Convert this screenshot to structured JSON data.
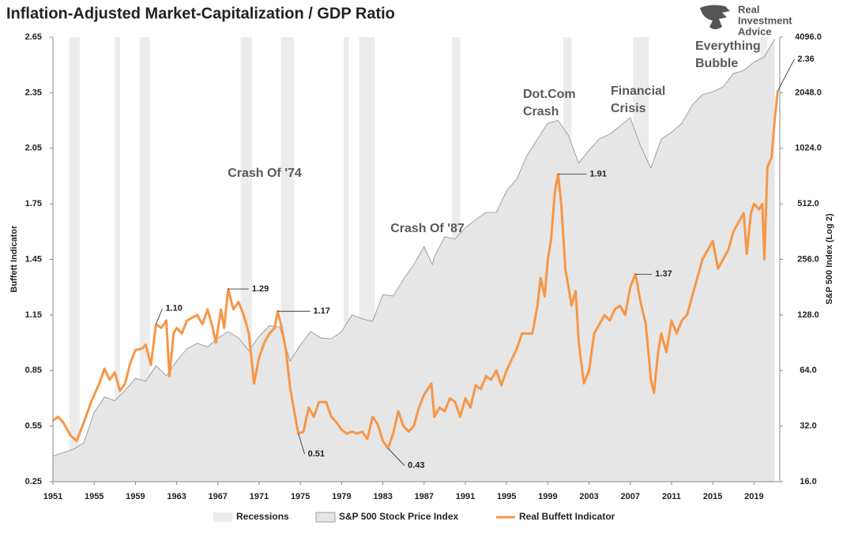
{
  "chart_data": {
    "type": "line",
    "title": "Inflation-Adjusted Market-Capitalization / GDP Ratio",
    "logo_text": [
      "Real",
      "Investment",
      "Advice"
    ],
    "ylabel": "Buffett Indicator",
    "y2label": "S&P 500 Index (Log 2)",
    "y2scale": "log2",
    "xlim": [
      1951,
      2021.5
    ],
    "xticks": [
      1951,
      1955,
      1959,
      1963,
      1967,
      1971,
      1975,
      1979,
      1983,
      1987,
      1991,
      1995,
      1999,
      2003,
      2007,
      2011,
      2015,
      2019
    ],
    "ylim": [
      0.25,
      2.65
    ],
    "yticks": [
      0.25,
      0.55,
      0.85,
      1.15,
      1.45,
      1.75,
      2.05,
      2.35,
      2.65
    ],
    "y2lim": [
      16,
      4096
    ],
    "y2ticks": [
      {
        "value": 16,
        "label": "16.0"
      },
      {
        "value": 32,
        "label": "32.0"
      },
      {
        "value": 64,
        "label": "64.0"
      },
      {
        "value": 128,
        "label": "128.0"
      },
      {
        "value": 256,
        "label": "256.0"
      },
      {
        "value": 512,
        "label": "512.0"
      },
      {
        "value": 1024,
        "label": "1024.0"
      },
      {
        "value": 2048,
        "label": "2048.0"
      },
      {
        "value": 4096,
        "label": "4096.0"
      }
    ],
    "recession_name": "Recessions",
    "recession_color": "#ececec",
    "recessions": [
      [
        1952.6,
        1953.6
      ],
      [
        1957.0,
        1957.5
      ],
      [
        1959.4,
        1960.4
      ],
      [
        1969.2,
        1970.3
      ],
      [
        1973.1,
        1974.4
      ],
      [
        1979.2,
        1979.7
      ],
      [
        1980.7,
        1982.2
      ],
      [
        1989.7,
        1990.5
      ],
      [
        2000.5,
        2001.3
      ],
      [
        2007.3,
        2008.8
      ],
      [
        2019.6,
        2020.3
      ]
    ],
    "series": [
      {
        "name": "S&P 500 Stock Price Index",
        "kind": "area",
        "axis": "y2",
        "color": "#e6e6e6",
        "edge_color": "#8c8c8c",
        "x": [
          1951,
          1953,
          1954,
          1955,
          1956,
          1957,
          1958,
          1959,
          1960,
          1961,
          1962,
          1963,
          1964,
          1965,
          1966,
          1967,
          1968,
          1969,
          1970,
          1971,
          1972,
          1973,
          1974,
          1975,
          1976,
          1977,
          1978,
          1979,
          1980,
          1981,
          1982,
          1983,
          1984,
          1985,
          1986,
          1987,
          1987.8,
          1988,
          1989,
          1990,
          1991,
          1992,
          1993,
          1994,
          1995,
          1996,
          1997,
          1998,
          1999,
          2000,
          2001,
          2002,
          2003,
          2004,
          2005,
          2006,
          2007,
          2008,
          2009,
          2010,
          2011,
          2012,
          2013,
          2014,
          2015,
          2016,
          2017,
          2018,
          2019,
          2020,
          2021
        ],
        "values": [
          22,
          24,
          26,
          38,
          46,
          44,
          50,
          58,
          56,
          68,
          60,
          72,
          84,
          90,
          86,
          96,
          104,
          96,
          82,
          98,
          112,
          110,
          72,
          88,
          104,
          96,
          95,
          104,
          128,
          122,
          118,
          165,
          162,
          200,
          240,
          300,
          240,
          265,
          340,
          330,
          380,
          420,
          460,
          460,
          600,
          700,
          940,
          1150,
          1400,
          1450,
          1200,
          850,
          1000,
          1150,
          1220,
          1350,
          1500,
          1050,
          800,
          1150,
          1250,
          1400,
          1750,
          2000,
          2070,
          2200,
          2600,
          2700,
          3000,
          3200,
          4000
        ]
      },
      {
        "name": "Real Buffett Indicator",
        "kind": "line",
        "color": "#f79646",
        "x": [
          1951.0,
          1951.5,
          1952,
          1952.7,
          1953.3,
          1954,
          1954.7,
          1955.5,
          1956,
          1956.5,
          1957,
          1957.5,
          1958,
          1958.5,
          1959,
          1959.7,
          1960,
          1960.5,
          1961,
          1961.5,
          1962,
          1962.3,
          1962.7,
          1963,
          1963.5,
          1964,
          1965,
          1965.5,
          1966,
          1966.5,
          1966.8,
          1967.3,
          1967.6,
          1968,
          1968.5,
          1969,
          1969.5,
          1970,
          1970.5,
          1971,
          1971.5,
          1972,
          1972.5,
          1972.8,
          1973.2,
          1973.6,
          1974,
          1974.5,
          1974.8,
          1975.3,
          1975.8,
          1976.3,
          1976.8,
          1977.5,
          1978,
          1978.5,
          1979,
          1979.5,
          1980,
          1980.5,
          1981,
          1981.5,
          1982,
          1982.5,
          1983,
          1983.5,
          1984,
          1984.5,
          1985,
          1985.5,
          1986,
          1986.5,
          1987,
          1987.7,
          1988,
          1988.5,
          1989,
          1989.5,
          1990,
          1990.5,
          1991,
          1991.5,
          1992,
          1992.5,
          1993,
          1993.5,
          1994,
          1994.5,
          1995,
          1996,
          1996.5,
          1997,
          1997.5,
          1998,
          1998.3,
          1998.7,
          1999,
          1999.3,
          1999.7,
          2000,
          2000.3,
          2000.7,
          2001,
          2001.3,
          2001.7,
          2002,
          2002.5,
          2003,
          2003.5,
          2004,
          2004.5,
          2005,
          2005.5,
          2006,
          2006.5,
          2007,
          2007.5,
          2008,
          2008.5,
          2009,
          2009.3,
          2009.7,
          2010,
          2010.5,
          2011,
          2011.5,
          2012,
          2012.5,
          2013,
          2013.5,
          2014,
          2014.5,
          2015,
          2015.5,
          2016,
          2016.5,
          2017,
          2017.5,
          2018,
          2018.3,
          2018.7,
          2019,
          2019.5,
          2019.8,
          2020,
          2020.3,
          2020.7,
          2021,
          2021.3
        ],
        "values": [
          0.58,
          0.6,
          0.57,
          0.5,
          0.47,
          0.57,
          0.68,
          0.78,
          0.86,
          0.8,
          0.84,
          0.74,
          0.78,
          0.89,
          0.96,
          0.97,
          0.99,
          0.88,
          1.1,
          1.08,
          1.12,
          0.82,
          1.05,
          1.08,
          1.05,
          1.12,
          1.15,
          1.1,
          1.18,
          1.08,
          1.0,
          1.18,
          1.08,
          1.29,
          1.18,
          1.22,
          1.15,
          1.05,
          0.78,
          0.92,
          1.0,
          1.05,
          1.08,
          1.17,
          1.08,
          0.96,
          0.76,
          0.6,
          0.51,
          0.52,
          0.65,
          0.6,
          0.68,
          0.68,
          0.6,
          0.57,
          0.53,
          0.51,
          0.52,
          0.51,
          0.52,
          0.48,
          0.6,
          0.56,
          0.47,
          0.43,
          0.51,
          0.63,
          0.55,
          0.52,
          0.55,
          0.65,
          0.72,
          0.78,
          0.6,
          0.65,
          0.63,
          0.7,
          0.68,
          0.6,
          0.7,
          0.65,
          0.77,
          0.75,
          0.82,
          0.8,
          0.85,
          0.77,
          0.85,
          0.97,
          1.05,
          1.05,
          1.05,
          1.2,
          1.35,
          1.25,
          1.45,
          1.55,
          1.82,
          1.91,
          1.75,
          1.4,
          1.3,
          1.2,
          1.28,
          1.0,
          0.78,
          0.85,
          1.05,
          1.1,
          1.15,
          1.12,
          1.18,
          1.2,
          1.15,
          1.3,
          1.37,
          1.22,
          1.1,
          0.8,
          0.73,
          0.95,
          1.05,
          0.95,
          1.12,
          1.05,
          1.12,
          1.15,
          1.25,
          1.35,
          1.45,
          1.5,
          1.55,
          1.4,
          1.45,
          1.5,
          1.6,
          1.65,
          1.7,
          1.48,
          1.7,
          1.75,
          1.72,
          1.75,
          1.45,
          1.95,
          2.0,
          2.2,
          2.36
        ]
      }
    ],
    "callouts": [
      {
        "x": 1961,
        "value": 1.1,
        "label": "1.10"
      },
      {
        "x": 1968,
        "value": 1.29,
        "label": "1.29"
      },
      {
        "x": 1972.8,
        "value": 1.17,
        "label": "1.17"
      },
      {
        "x": 1974.8,
        "value": 0.51,
        "label": "0.51"
      },
      {
        "x": 1983.5,
        "value": 0.43,
        "label": "0.43"
      },
      {
        "x": 2000,
        "value": 1.91,
        "label": "1.91"
      },
      {
        "x": 2007.5,
        "value": 1.37,
        "label": "1.37"
      },
      {
        "x": 2021.3,
        "value": 2.36,
        "label": "2.36"
      }
    ],
    "annotations": [
      {
        "lines": [
          "Crash Of '74"
        ]
      },
      {
        "lines": [
          "Crash Of '87"
        ]
      },
      {
        "lines": [
          "Dot.Com",
          "Crash"
        ]
      },
      {
        "lines": [
          "Financial",
          "Crisis"
        ]
      },
      {
        "lines": [
          "Everything",
          "Bubble"
        ]
      }
    ]
  }
}
